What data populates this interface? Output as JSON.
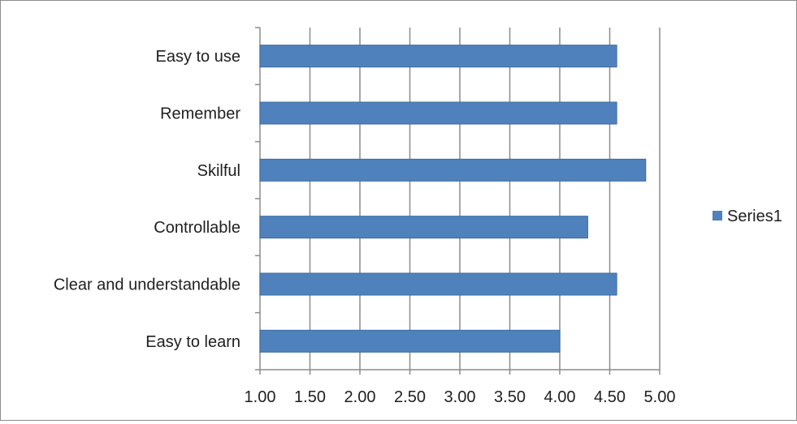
{
  "chart_data": {
    "type": "bar",
    "orientation": "horizontal",
    "categories": [
      "Easy to learn",
      "Clear and understandable",
      "Controllable",
      "Skilful",
      "Remember",
      "Easy to use"
    ],
    "series": [
      {
        "name": "Series1",
        "values": [
          4.0,
          4.57,
          4.28,
          4.86,
          4.57,
          4.57
        ]
      }
    ],
    "x_ticks": [
      "1.00",
      "1.50",
      "2.00",
      "2.50",
      "3.00",
      "3.50",
      "4.00",
      "4.50",
      "5.00"
    ],
    "xlim": [
      1.0,
      5.0
    ],
    "grid": "vertical",
    "legend": "right",
    "colors": {
      "bar": "#4f81bd",
      "bar_edge": "#3d6aa0",
      "grid": "#8c8c8c",
      "axis": "#8c8c8c"
    }
  }
}
